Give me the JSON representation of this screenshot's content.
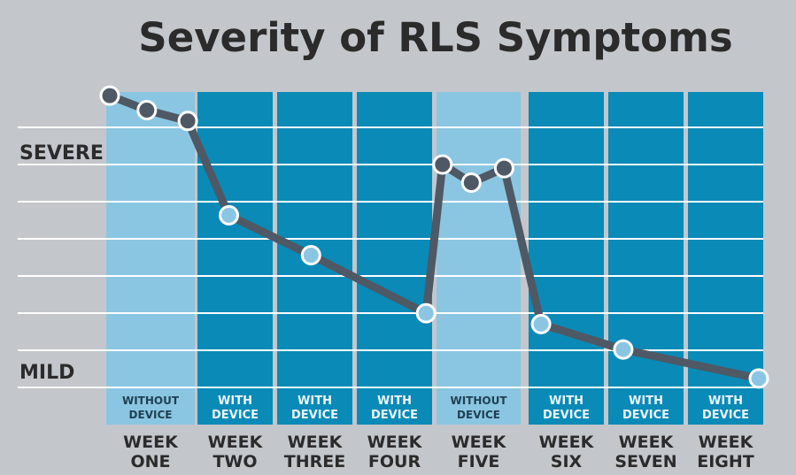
{
  "chart_data": {
    "type": "line",
    "title": "Severity of RLS Symptoms",
    "y_labels": {
      "high": "SEVERE",
      "low": "MILD"
    },
    "ylim": [
      0,
      8
    ],
    "columns": [
      {
        "week_line1": "WEEK",
        "week_line2": "ONE",
        "mode_line1": "WITHOUT",
        "mode_line2": "DEVICE",
        "device": false
      },
      {
        "week_line1": "WEEK",
        "week_line2": "TWO",
        "mode_line1": "WITH",
        "mode_line2": "DEVICE",
        "device": true
      },
      {
        "week_line1": "WEEK",
        "week_line2": "THREE",
        "mode_line1": "WITH",
        "mode_line2": "DEVICE",
        "device": true
      },
      {
        "week_line1": "WEEK",
        "week_line2": "FOUR",
        "mode_line1": "WITH",
        "mode_line2": "DEVICE",
        "device": true
      },
      {
        "week_line1": "WEEK",
        "week_line2": "FIVE",
        "mode_line1": "WITHOUT",
        "mode_line2": "DEVICE",
        "device": false
      },
      {
        "week_line1": "WEEK",
        "week_line2": "SIX",
        "mode_line1": "WITH",
        "mode_line2": "DEVICE",
        "device": true
      },
      {
        "week_line1": "WEEK",
        "week_line2": "SEVEN",
        "mode_line1": "WITH",
        "mode_line2": "DEVICE",
        "device": true
      },
      {
        "week_line1": "WEEK",
        "week_line2": "EIGHT",
        "mode_line1": "WITH",
        "mode_line2": "DEVICE",
        "device": true
      }
    ],
    "points": [
      {
        "x": 0.05,
        "y": 7.9,
        "style": "dark"
      },
      {
        "x": 0.5,
        "y": 7.5,
        "style": "dark"
      },
      {
        "x": 1.0,
        "y": 7.2,
        "style": "dark"
      },
      {
        "x": 1.5,
        "y": 4.6,
        "style": "light"
      },
      {
        "x": 2.5,
        "y": 3.5,
        "style": "light"
      },
      {
        "x": 3.9,
        "y": 1.9,
        "style": "light"
      },
      {
        "x": 4.1,
        "y": 6.0,
        "style": "dark"
      },
      {
        "x": 4.45,
        "y": 5.5,
        "style": "dark"
      },
      {
        "x": 4.85,
        "y": 5.9,
        "style": "dark"
      },
      {
        "x": 5.3,
        "y": 1.6,
        "style": "light"
      },
      {
        "x": 6.3,
        "y": 0.9,
        "style": "light"
      },
      {
        "x": 7.95,
        "y": 0.1,
        "style": "light"
      }
    ],
    "colors": {
      "background": "#c3c7cc",
      "without_device": "#8ac6e2",
      "with_device": "#0a8ab7",
      "gridline": "#ffffff",
      "line": "#4e5965",
      "marker_dark_fill": "#4e5965",
      "marker_light_fill": "#8ac6e2",
      "marker_stroke": "#ffffff",
      "text": "#2b2b2b",
      "column_label": "#eaf6fc"
    }
  }
}
